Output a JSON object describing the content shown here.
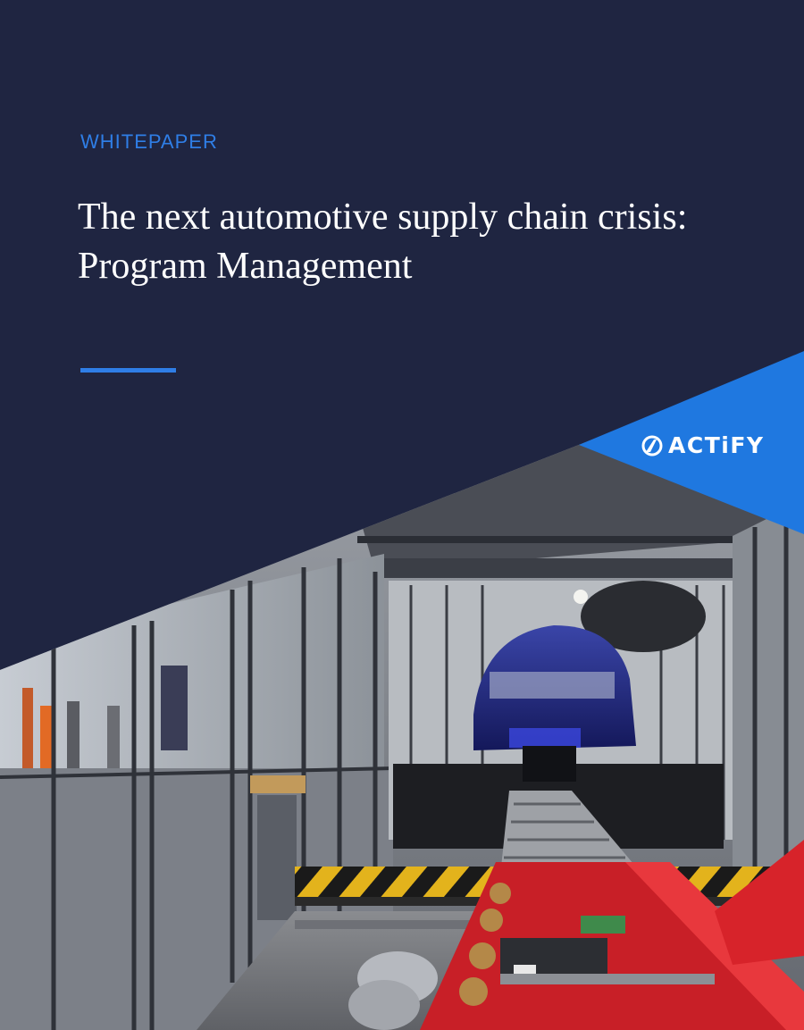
{
  "cover": {
    "eyebrow": "WHITEPAPER",
    "title_line1": "The next automotive supply chain crisis:",
    "title_line2": "Program Management"
  },
  "brand": {
    "logo_text": "ACTiFY",
    "logo_icon": "actify-logo-icon"
  },
  "photo": {
    "subject": "automotive-assembly-line-photo"
  },
  "colors": {
    "navy": "#1f2541",
    "accent_blue": "#2f7ee6",
    "triangle_blue": "#1f78e0",
    "conveyor_red": "#d7232a",
    "hazard_yellow": "#e3b31c"
  }
}
